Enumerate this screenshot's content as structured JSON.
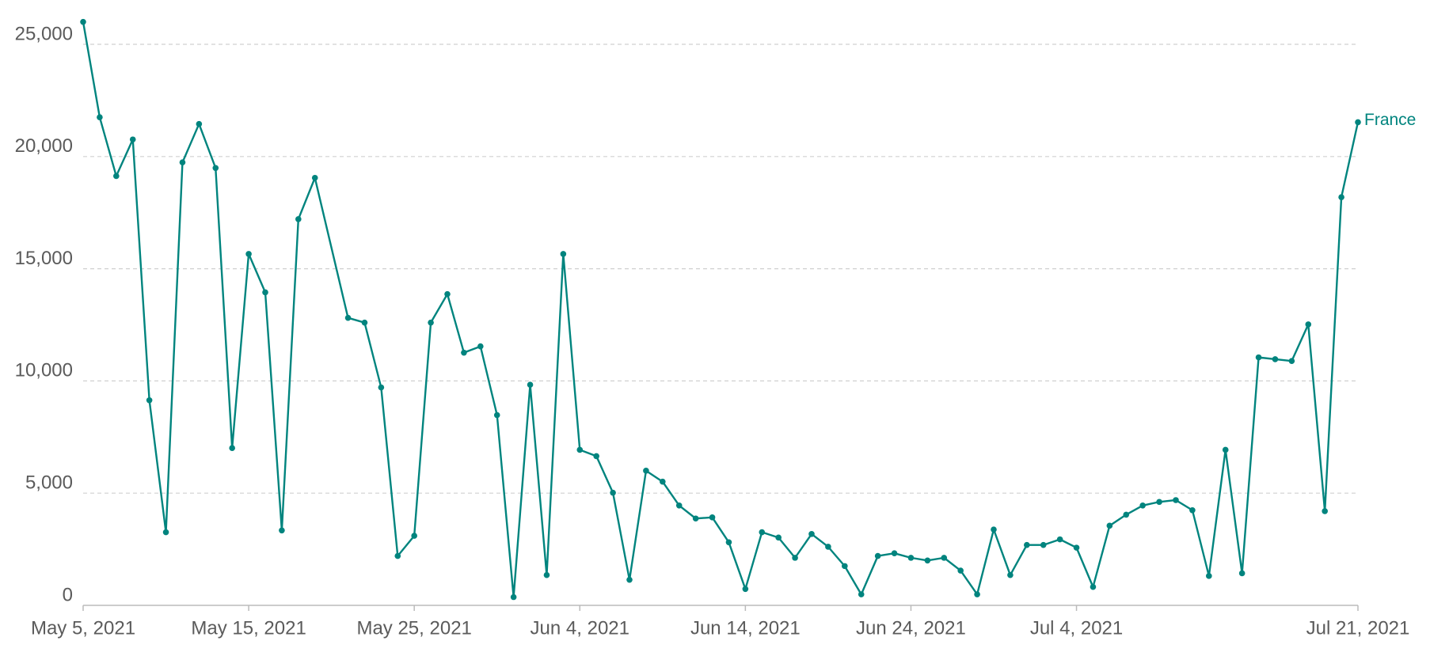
{
  "chart_data": {
    "type": "line",
    "x": [
      "2021-05-05",
      "2021-05-06",
      "2021-05-07",
      "2021-05-08",
      "2021-05-09",
      "2021-05-10",
      "2021-05-11",
      "2021-05-12",
      "2021-05-13",
      "2021-05-14",
      "2021-05-15",
      "2021-05-16",
      "2021-05-17",
      "2021-05-18",
      "2021-05-19",
      "2021-05-21",
      "2021-05-22",
      "2021-05-23",
      "2021-05-24",
      "2021-05-25",
      "2021-05-26",
      "2021-05-27",
      "2021-05-28",
      "2021-05-29",
      "2021-05-30",
      "2021-05-31",
      "2021-06-01",
      "2021-06-02",
      "2021-06-03",
      "2021-06-04",
      "2021-06-05",
      "2021-06-06",
      "2021-06-07",
      "2021-06-08",
      "2021-06-09",
      "2021-06-10",
      "2021-06-11",
      "2021-06-12",
      "2021-06-13",
      "2021-06-14",
      "2021-06-15",
      "2021-06-16",
      "2021-06-17",
      "2021-06-18",
      "2021-06-19",
      "2021-06-20",
      "2021-06-21",
      "2021-06-22",
      "2021-06-23",
      "2021-06-24",
      "2021-06-25",
      "2021-06-26",
      "2021-06-27",
      "2021-06-28",
      "2021-06-29",
      "2021-06-30",
      "2021-07-01",
      "2021-07-02",
      "2021-07-03",
      "2021-07-04",
      "2021-07-05",
      "2021-07-06",
      "2021-07-07",
      "2021-07-08",
      "2021-07-09",
      "2021-07-10",
      "2021-07-11",
      "2021-07-12",
      "2021-07-13",
      "2021-07-14",
      "2021-07-15",
      "2021-07-16",
      "2021-07-17",
      "2021-07-18",
      "2021-07-19",
      "2021-07-20",
      "2021-07-21"
    ],
    "series": [
      {
        "name": "France",
        "color": "#00847e",
        "values": [
          26000,
          21750,
          19130,
          20760,
          9140,
          3260,
          19740,
          21450,
          19490,
          7010,
          15660,
          13950,
          3340,
          17210,
          19050,
          12810,
          12600,
          9710,
          2200,
          3100,
          12600,
          13870,
          11260,
          11540,
          8480,
          370,
          9830,
          1350,
          15660,
          6930,
          6650,
          5020,
          1140,
          6000,
          5510,
          4450,
          3870,
          3920,
          2810,
          730,
          3260,
          3020,
          2120,
          3180,
          2610,
          1750,
          490,
          2200,
          2320,
          2120,
          2000,
          2120,
          1550,
          490,
          3380,
          1350,
          2690,
          2690,
          2940,
          2570,
          820,
          3550,
          4040,
          4450,
          4610,
          4690,
          4240,
          1310,
          6930,
          1430,
          11050,
          10970,
          10890,
          12520,
          4200,
          18190,
          21530
        ]
      }
    ],
    "xlim": [
      "2021-05-05",
      "2021-07-21"
    ],
    "xticks": [
      {
        "value": "2021-05-05",
        "label": "May 5, 2021"
      },
      {
        "value": "2021-05-15",
        "label": "May 15, 2021"
      },
      {
        "value": "2021-05-25",
        "label": "May 25, 2021"
      },
      {
        "value": "2021-06-04",
        "label": "Jun 4, 2021"
      },
      {
        "value": "2021-06-14",
        "label": "Jun 14, 2021"
      },
      {
        "value": "2021-06-24",
        "label": "Jun 24, 2021"
      },
      {
        "value": "2021-07-04",
        "label": "Jul 4, 2021"
      },
      {
        "value": "2021-07-21",
        "label": "Jul 21, 2021"
      }
    ],
    "ylim": [
      0,
      25000
    ],
    "yticks": [
      0,
      {
        "value": 5000,
        "label": "5,000"
      },
      {
        "value": 10000,
        "label": "10,000"
      },
      {
        "value": 15000,
        "label": "15,000"
      },
      {
        "value": 20000,
        "label": "20,000"
      },
      {
        "value": 25000,
        "label": "25,000"
      }
    ],
    "grid": true
  }
}
